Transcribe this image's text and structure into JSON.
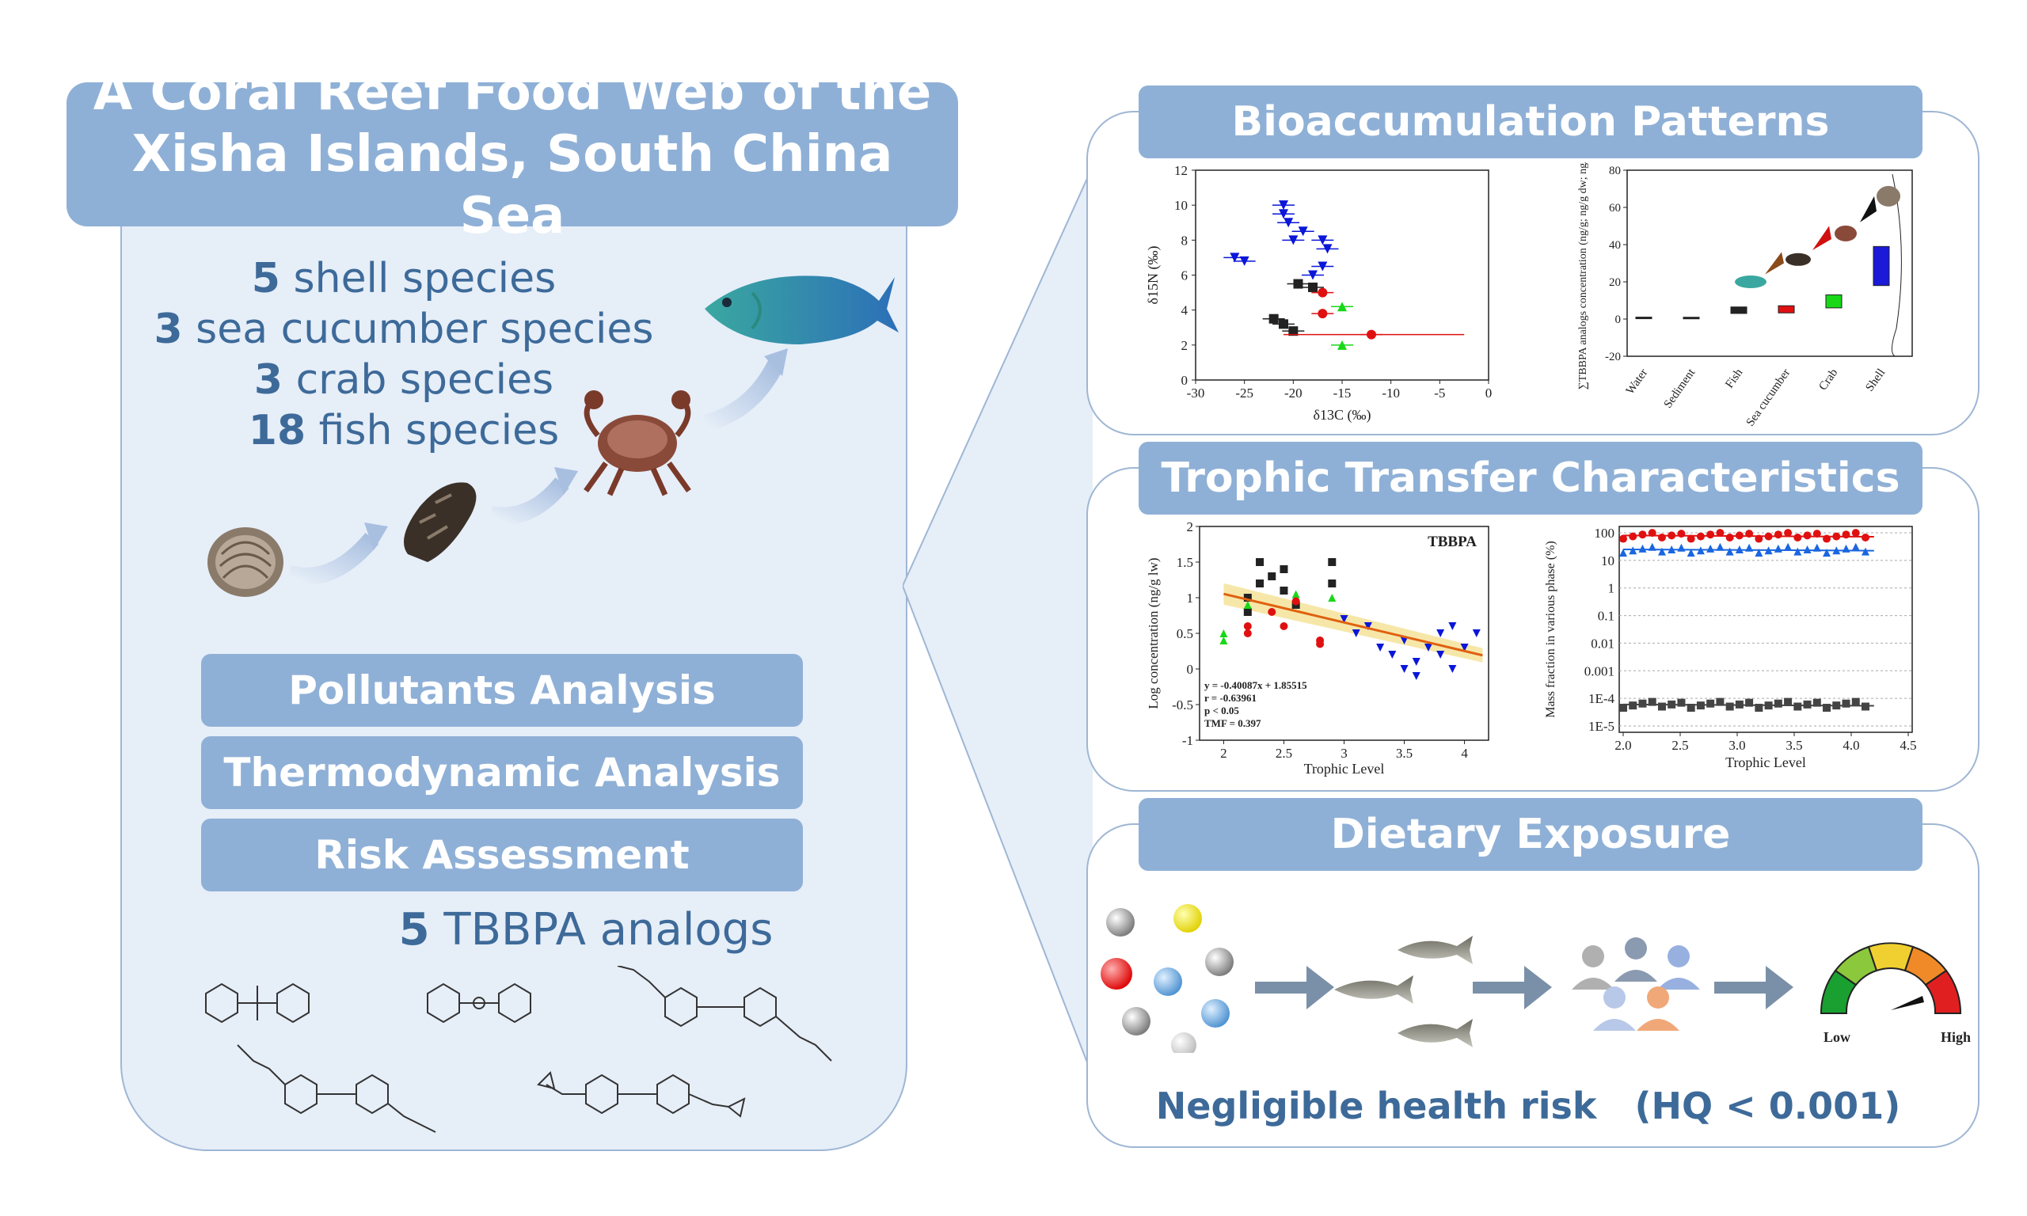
{
  "title": "A Coral Reef Food Web of the Xisha Islands, South China Sea",
  "species": [
    {
      "count": "5",
      "label": "shell species"
    },
    {
      "count": "3",
      "label": "sea cucumber species"
    },
    {
      "count": "3",
      "label": "crab species"
    },
    {
      "count": "18",
      "label": "fish species"
    }
  ],
  "analyses": [
    "Pollutants Analysis",
    "Thermodynamic Analysis",
    "Risk Assessment"
  ],
  "analogs": {
    "count": "5",
    "label": "TBBPA analogs"
  },
  "sections": {
    "bioaccumulation": "Bioaccumulation Patterns",
    "trophic": "Trophic Transfer Characteristics",
    "dietary": "Dietary Exposure"
  },
  "conclusion": {
    "text": "Negligible health risk",
    "hq": "(HQ < 0.001)"
  },
  "gauge": {
    "low": "Low",
    "high": "High"
  },
  "colors": {
    "accent": "#8fb0d6",
    "panel": "#e6eef8",
    "text": "#3d6a99"
  },
  "chart_data": [
    {
      "type": "scatter",
      "xlabel": "δ13C (‰)",
      "ylabel": "δ15N (‰)",
      "xlim": [
        -30,
        0
      ],
      "ylim": [
        0,
        12
      ],
      "xticks": [
        "-30",
        "-25",
        "-20",
        "-15",
        "-10",
        "-5",
        "0"
      ],
      "yticks": [
        "0",
        "2",
        "4",
        "6",
        "8",
        "10",
        "12"
      ],
      "series": [
        {
          "color": "#0a16d8",
          "marker": "triangle-down",
          "points": [
            [
              -26,
              7
            ],
            [
              -25,
              6.8
            ],
            [
              -21,
              9.5
            ],
            [
              -20.5,
              9.0
            ],
            [
              -20,
              8.0
            ],
            [
              -19,
              8.5
            ],
            [
              -17,
              8.0
            ],
            [
              -16.5,
              7.5
            ],
            [
              -17,
              6.5
            ],
            [
              -18,
              6.0
            ],
            [
              -21,
              10.0
            ]
          ]
        },
        {
          "color": "#222222",
          "marker": "square",
          "points": [
            [
              -22,
              3.5
            ],
            [
              -21,
              3.2
            ],
            [
              -20,
              2.8
            ],
            [
              -19.5,
              5.5
            ],
            [
              -18,
              5.3
            ]
          ]
        },
        {
          "color": "#e01010",
          "marker": "circle",
          "points": [
            [
              -17,
              3.8
            ],
            [
              -12,
              2.6
            ],
            [
              -17,
              5.0
            ]
          ]
        },
        {
          "color": "#18d818",
          "marker": "triangle-up",
          "points": [
            [
              -15,
              4.2
            ],
            [
              -15,
              2.0
            ]
          ]
        }
      ]
    },
    {
      "type": "bar",
      "ylabel": "∑TBBPA analogs concentration (ng/g; ng/g dw; ng/g lw)",
      "categories": [
        "Water",
        "Sediment",
        "Fish",
        "Sea cucumber",
        "Crab",
        "Shell"
      ],
      "ylim": [
        -20,
        80
      ],
      "yticks": [
        "-20",
        "0",
        "20",
        "40",
        "60",
        "80"
      ],
      "values": [
        0.3,
        0.2,
        5.0,
        5.5,
        10.0,
        30.0
      ]
    },
    {
      "type": "scatter",
      "title": "TBBPA",
      "xlabel": "Trophic Level",
      "ylabel": "Log concentration (ng/g lw)",
      "xlim": [
        1.8,
        4.2
      ],
      "ylim": [
        -1,
        2
      ],
      "xticks": [
        "2",
        "2.5",
        "3",
        "3.5",
        "4"
      ],
      "yticks": [
        "-1",
        "-0.5",
        "0",
        "0.5",
        "1",
        "1.5",
        "2"
      ],
      "annotations": [
        "y = -0.40087x + 1.85515",
        "r = -0.63961",
        "p < 0.05",
        "TMF = 0.397"
      ],
      "fit": {
        "slope": -0.40087,
        "intercept": 1.85515
      },
      "series": [
        {
          "color": "#222222",
          "marker": "square",
          "points": [
            [
              2.2,
              1.0
            ],
            [
              2.3,
              1.2
            ],
            [
              2.3,
              1.5
            ],
            [
              2.4,
              1.3
            ],
            [
              2.5,
              1.4
            ],
            [
              2.5,
              1.1
            ],
            [
              2.6,
              0.9
            ],
            [
              2.9,
              1.5
            ],
            [
              2.9,
              1.2
            ],
            [
              2.2,
              0.8
            ]
          ]
        },
        {
          "color": "#18d818",
          "marker": "triangle-up",
          "points": [
            [
              2.0,
              0.4
            ],
            [
              2.0,
              0.5
            ],
            [
              2.6,
              1.05
            ],
            [
              2.9,
              1.0
            ],
            [
              2.2,
              0.9
            ]
          ]
        },
        {
          "color": "#e01010",
          "marker": "circle",
          "points": [
            [
              2.2,
              0.5
            ],
            [
              2.2,
              0.6
            ],
            [
              2.4,
              0.8
            ],
            [
              2.5,
              0.6
            ],
            [
              2.8,
              0.4
            ],
            [
              2.8,
              0.35
            ],
            [
              2.6,
              0.95
            ]
          ]
        },
        {
          "color": "#0a16d8",
          "marker": "triangle-down",
          "points": [
            [
              3.0,
              0.7
            ],
            [
              3.1,
              0.5
            ],
            [
              3.2,
              0.6
            ],
            [
              3.3,
              0.3
            ],
            [
              3.4,
              0.2
            ],
            [
              3.5,
              0.4
            ],
            [
              3.5,
              0.0
            ],
            [
              3.6,
              0.1
            ],
            [
              3.7,
              0.3
            ],
            [
              3.8,
              0.2
            ],
            [
              3.8,
              0.5
            ],
            [
              3.9,
              0.6
            ],
            [
              4.0,
              0.3
            ],
            [
              4.1,
              0.5
            ],
            [
              3.6,
              -0.1
            ],
            [
              3.9,
              0.0
            ]
          ]
        }
      ]
    },
    {
      "type": "scatter",
      "xlabel": "Trophic Level",
      "ylabel": "Mass fraction in various phase (%)",
      "xlim": [
        2.0,
        4.5
      ],
      "yscale": "log",
      "yticks": [
        "100",
        "10",
        "1",
        "0.1",
        "0.01",
        "0.001",
        "1E-4",
        "1E-5"
      ],
      "xticks": [
        "2.0",
        "2.5",
        "3.0",
        "3.5",
        "4.0",
        "4.5"
      ],
      "series": [
        {
          "color": "#e01010",
          "marker": "circle",
          "values_pct_approx": 80
        },
        {
          "color": "#1a66e0",
          "marker": "triangle-up",
          "values_pct_approx": 25
        },
        {
          "color": "#444444",
          "marker": "square",
          "values_pct_approx": 6e-05
        }
      ]
    }
  ]
}
